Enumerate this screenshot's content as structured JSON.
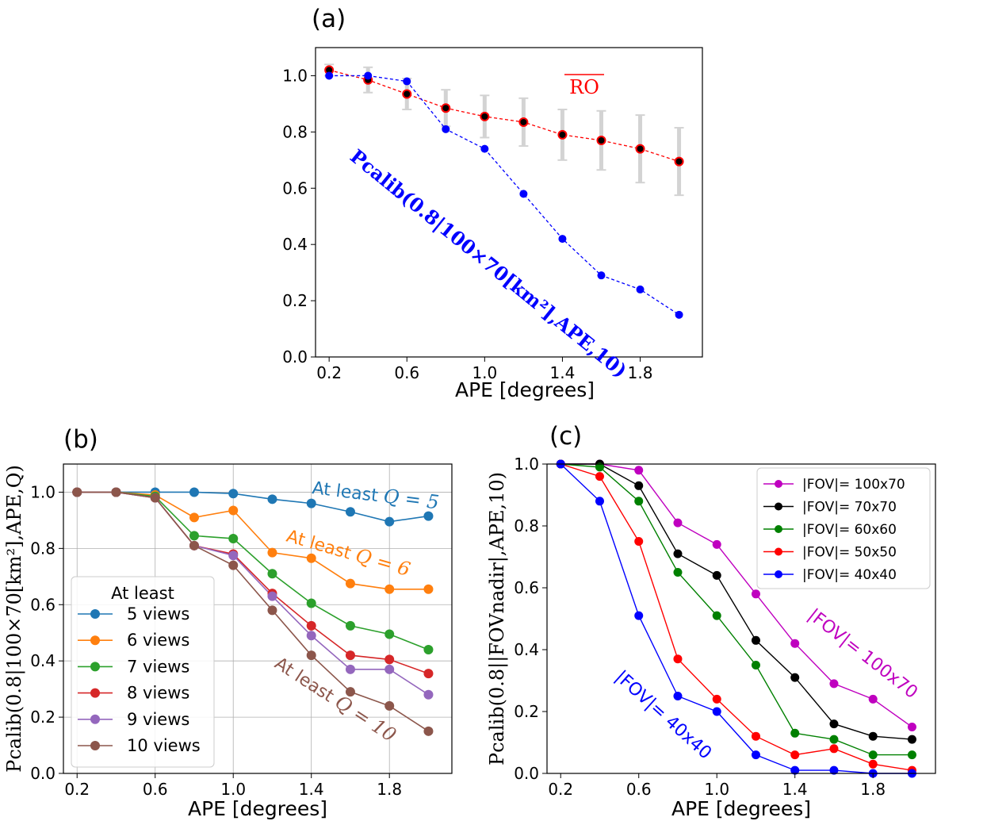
{
  "chart_data": [
    {
      "panel": "(a)",
      "type": "line",
      "xlabel": "APE [degrees]",
      "ylabel": "",
      "xlim": [
        0.13,
        2.12
      ],
      "ylim": [
        0.0,
        1.1
      ],
      "xticks": [
        "0.2",
        "0.6",
        "1.0",
        "1.4",
        "1.8"
      ],
      "yticks": [
        "0.0",
        "0.2",
        "0.4",
        "0.6",
        "0.8",
        "1.0"
      ],
      "grid": false,
      "x": [
        0.2,
        0.4,
        0.6,
        0.8,
        1.0,
        1.2,
        1.4,
        1.6,
        1.8,
        2.0
      ],
      "series": [
        {
          "key": "ro",
          "color": "#ff0000",
          "values": [
            1.02,
            0.985,
            0.935,
            0.885,
            0.855,
            0.835,
            0.79,
            0.77,
            0.74,
            0.695
          ],
          "errors": [
            0.02,
            0.045,
            0.055,
            0.065,
            0.075,
            0.085,
            0.09,
            0.105,
            0.12,
            0.12
          ],
          "marker_color": "#000000"
        },
        {
          "key": "pcalib",
          "color": "#0000ff",
          "values": [
            1.0,
            1.0,
            0.98,
            0.81,
            0.74,
            0.58,
            0.42,
            0.29,
            0.24,
            0.15
          ]
        }
      ],
      "annotations": {
        "ro_label": "RO",
        "pcalib_label": "Pcalib(0.8|100×70[km²],APE,10)"
      }
    },
    {
      "panel": "(b)",
      "type": "line",
      "xlabel": "APE [degrees]",
      "ylabel": "Pcalib(0.8|100×70[km²],APE,Q)",
      "xlim": [
        0.13,
        2.12
      ],
      "ylim": [
        0.0,
        1.1
      ],
      "xticks": [
        "0.2",
        "0.6",
        "1.0",
        "1.4",
        "1.8"
      ],
      "yticks": [
        "0.0",
        "0.2",
        "0.4",
        "0.6",
        "0.8",
        "1.0"
      ],
      "grid": true,
      "legend_title": "At least",
      "legend_position": "lower-left",
      "x": [
        0.2,
        0.4,
        0.6,
        0.8,
        1.0,
        1.2,
        1.4,
        1.6,
        1.8,
        2.0
      ],
      "series": [
        {
          "name": "5 views",
          "color": "#1f77b4",
          "values": [
            1.0,
            1.0,
            1.0,
            1.0,
            0.995,
            0.975,
            0.96,
            0.93,
            0.895,
            0.915
          ]
        },
        {
          "name": "6 views",
          "color": "#ff7f0e",
          "values": [
            1.0,
            1.0,
            0.99,
            0.91,
            0.935,
            0.785,
            0.765,
            0.675,
            0.655,
            0.655
          ]
        },
        {
          "name": "7 views",
          "color": "#2ca02c",
          "values": [
            1.0,
            1.0,
            0.985,
            0.845,
            0.835,
            0.71,
            0.605,
            0.525,
            0.495,
            0.44
          ]
        },
        {
          "name": "8 views",
          "color": "#d62728",
          "values": [
            1.0,
            1.0,
            0.98,
            0.81,
            0.78,
            0.64,
            0.525,
            0.42,
            0.405,
            0.355
          ]
        },
        {
          "name": "9 views",
          "color": "#9467bd",
          "values": [
            1.0,
            1.0,
            0.98,
            0.81,
            0.775,
            0.63,
            0.49,
            0.37,
            0.37,
            0.28
          ]
        },
        {
          "name": "10 views",
          "color": "#8c564b",
          "values": [
            1.0,
            1.0,
            0.98,
            0.81,
            0.74,
            0.58,
            0.42,
            0.29,
            0.24,
            0.15
          ]
        }
      ],
      "annotations": {
        "q5": {
          "prefix": "At least ",
          "math": "Q = 5",
          "color": "#1f77b4"
        },
        "q6": {
          "prefix": "At least ",
          "math": "Q = 6",
          "color": "#ff7f0e"
        },
        "q10": {
          "prefix": "At least ",
          "math": "Q = 10",
          "color": "#8c564b"
        }
      }
    },
    {
      "panel": "(c)",
      "type": "line",
      "xlabel": "APE [degrees]",
      "ylabel": "Pcalib(0.8||FOVnadir|,APE,10)",
      "xlim": [
        0.13,
        2.12
      ],
      "ylim": [
        0.0,
        1.0
      ],
      "xticks": [
        "0.2",
        "0.6",
        "1.0",
        "1.4",
        "1.8"
      ],
      "yticks": [
        "0.0",
        "0.2",
        "0.4",
        "0.6",
        "0.8",
        "1.0"
      ],
      "grid": false,
      "legend_position": "top-right",
      "x": [
        0.2,
        0.4,
        0.6,
        0.8,
        1.0,
        1.2,
        1.4,
        1.6,
        1.8,
        2.0
      ],
      "series": [
        {
          "name": "|FOV|= 100x70",
          "color": "#bf00bf",
          "values": [
            1.0,
            1.0,
            0.98,
            0.81,
            0.74,
            0.58,
            0.42,
            0.29,
            0.24,
            0.15
          ]
        },
        {
          "name": "|FOV|= 70x70",
          "color": "#000000",
          "values": [
            1.0,
            1.0,
            0.93,
            0.71,
            0.64,
            0.43,
            0.31,
            0.16,
            0.12,
            0.11
          ]
        },
        {
          "name": "|FOV|= 60x60",
          "color": "#008000",
          "values": [
            1.0,
            0.99,
            0.88,
            0.65,
            0.51,
            0.35,
            0.13,
            0.11,
            0.06,
            0.06
          ]
        },
        {
          "name": "|FOV|= 50x50",
          "color": "#ff0000",
          "values": [
            1.0,
            0.96,
            0.75,
            0.37,
            0.24,
            0.12,
            0.06,
            0.08,
            0.03,
            0.01
          ]
        },
        {
          "name": "|FOV|= 40x40",
          "color": "#0000ff",
          "values": [
            1.0,
            0.88,
            0.51,
            0.25,
            0.2,
            0.06,
            0.01,
            0.01,
            0.0,
            0.0
          ]
        }
      ],
      "annotations": {
        "fov100": {
          "text": "|FOV|= 100x70",
          "color": "#bf00bf"
        },
        "fov40": {
          "text": "|FOV|= 40x40",
          "color": "#0000ff"
        }
      }
    }
  ]
}
